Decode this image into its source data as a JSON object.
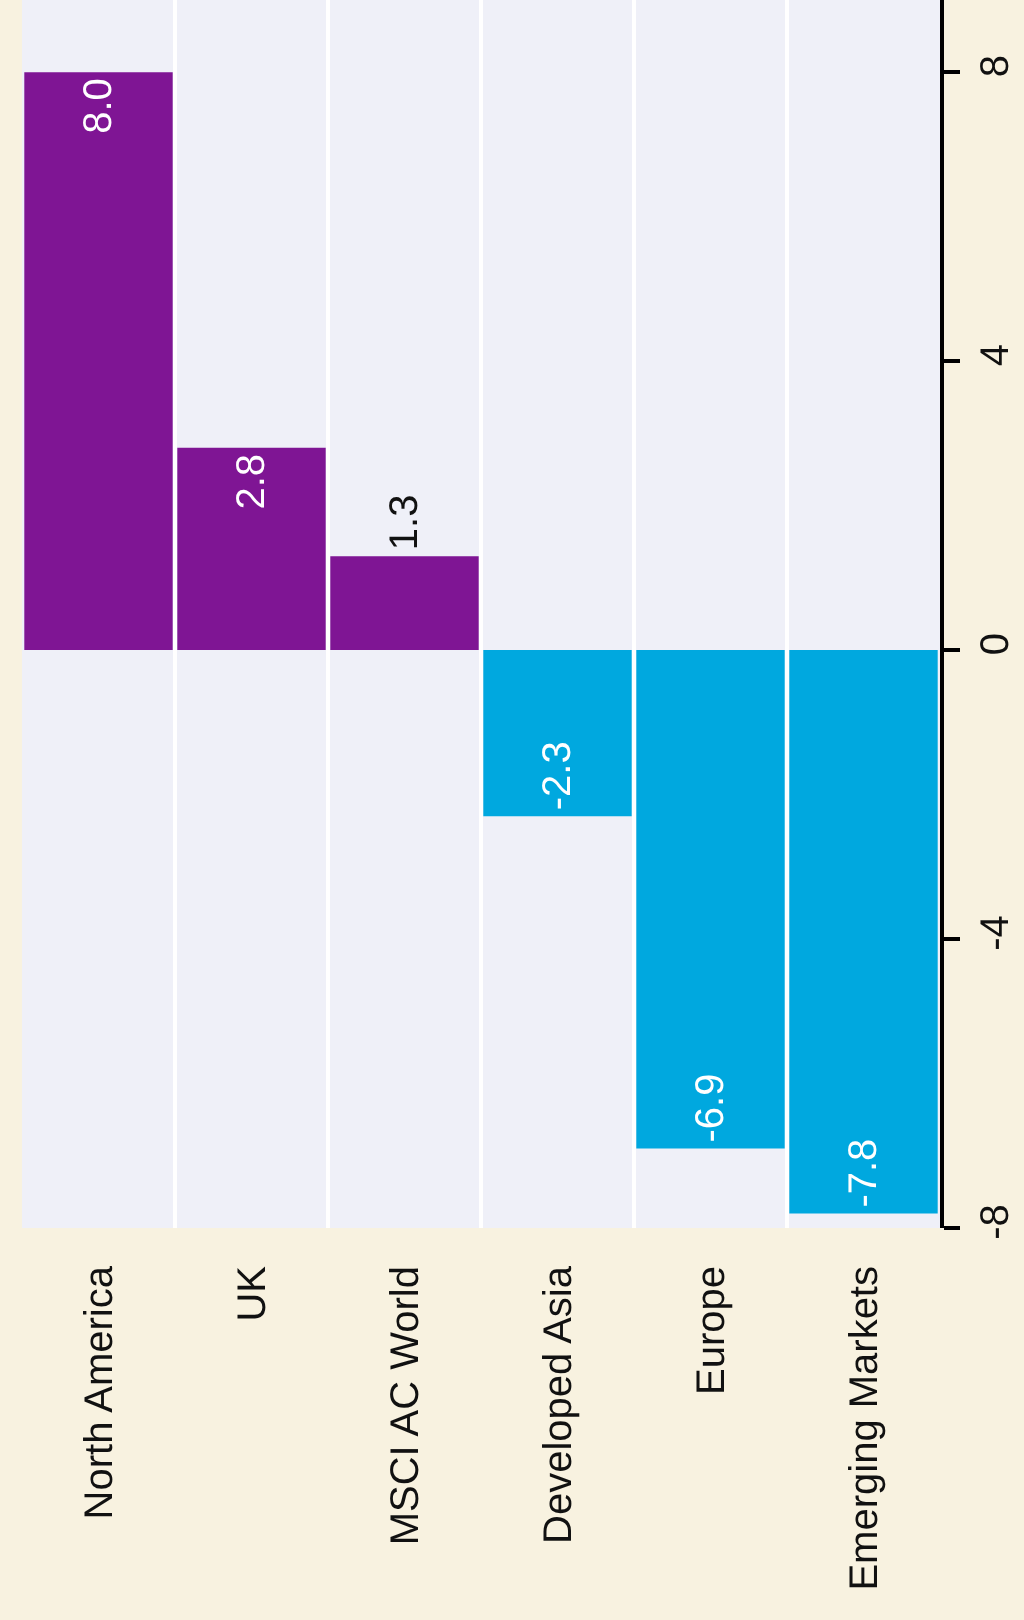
{
  "chart_data": {
    "type": "bar",
    "categories": [
      "North America",
      "UK",
      "MSCI AC World",
      "Developed Asia",
      "Europe",
      "Emerging Markets"
    ],
    "values": [
      8.0,
      2.8,
      1.3,
      -2.3,
      -6.9,
      -7.8
    ],
    "value_labels": [
      "8.0",
      "2.8",
      "1.3",
      "-2.3",
      "-6.9",
      "-7.8"
    ],
    "colors": [
      "#7f1594",
      "#7f1594",
      "#7f1594",
      "#00a8df",
      "#00a8df",
      "#00a8df"
    ],
    "ylim": [
      -8,
      9
    ],
    "yticks": [
      -8,
      -4,
      0,
      4,
      8
    ],
    "grid": "x"
  }
}
